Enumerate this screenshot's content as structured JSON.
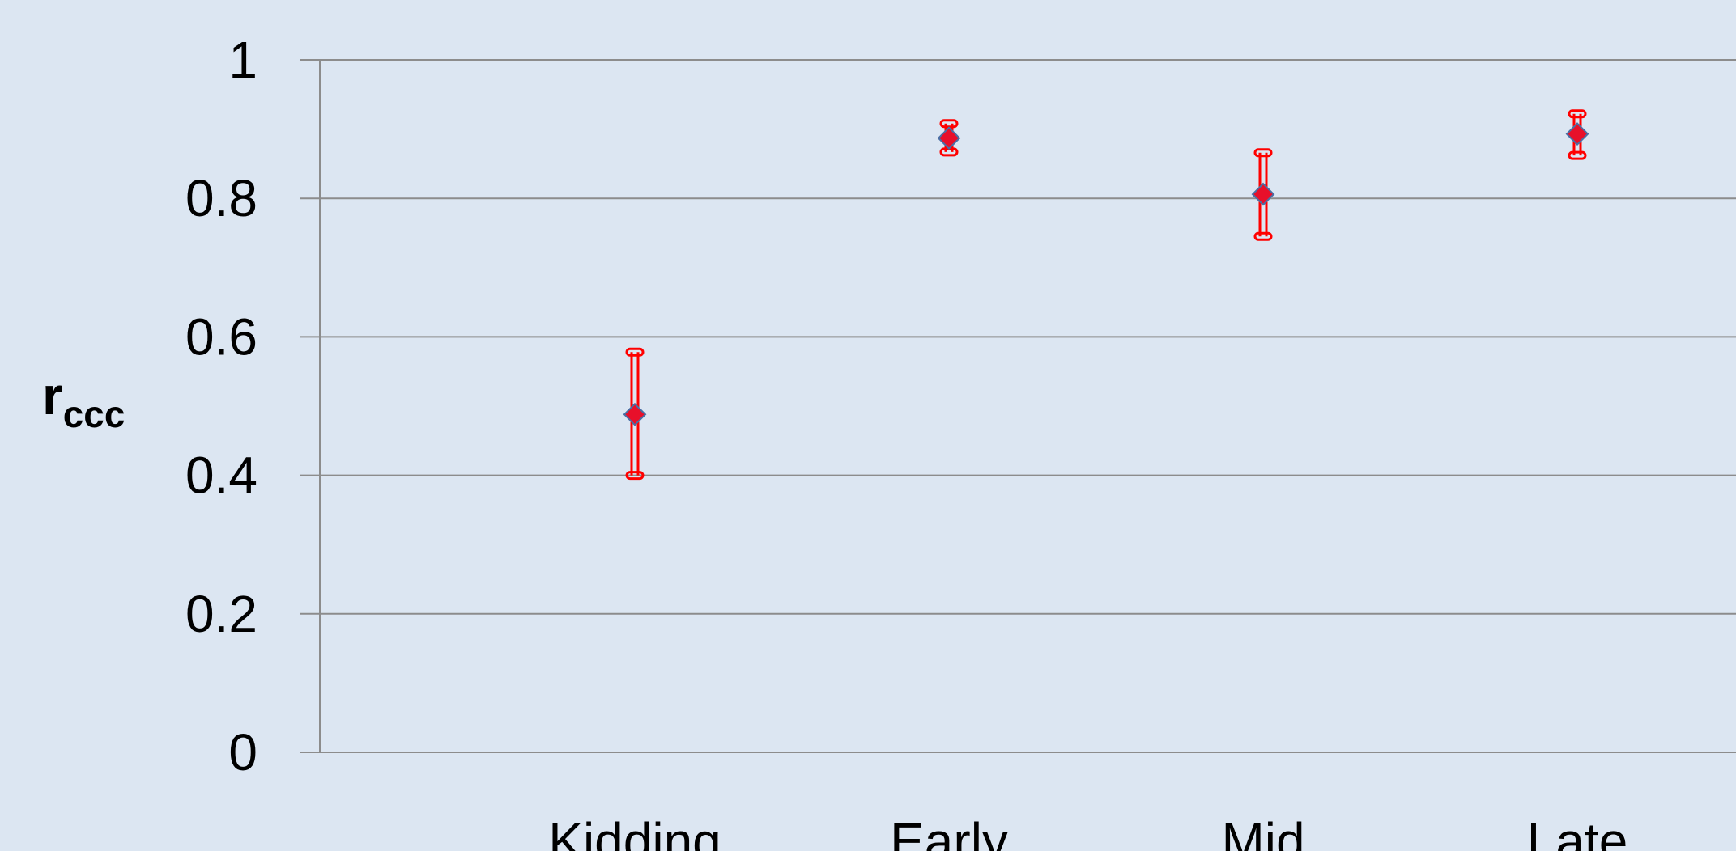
{
  "chart_data": {
    "type": "scatter",
    "ylabel": "r",
    "ylabel_subscript": "ccc",
    "categories": [
      "Kidding",
      "Early",
      "Mid",
      "Late"
    ],
    "yticks": [
      "0",
      "0.2",
      "0.4",
      "0.6",
      "0.8",
      "1"
    ],
    "ylim": [
      0,
      1
    ],
    "grid": true,
    "series": [
      {
        "values": [
          0.488,
          0.887,
          0.806,
          0.893
        ],
        "lower": [
          0.4,
          0.867,
          0.745,
          0.862
        ],
        "upper": [
          0.578,
          0.908,
          0.866,
          0.922
        ]
      }
    ],
    "colors": {
      "background": "#dce6f2",
      "gridline": "#8c8c8c",
      "errorbar": "#ff0000",
      "marker": "#e8102a",
      "marker_edge": "#4a6fa5"
    }
  }
}
